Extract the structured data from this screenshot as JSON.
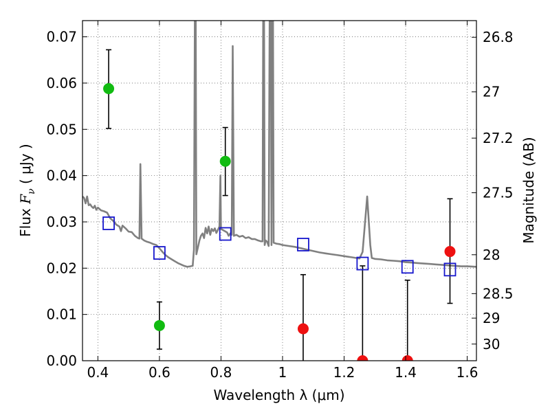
{
  "chart_data": {
    "type": "scatter",
    "xlabel": "Wavelength  λ (μm)",
    "ylabel": "Flux  F_ν  ( μJy )",
    "ylabel_parts": {
      "prefix": "Flux  ",
      "symbol": "F",
      "subscript": "ν",
      "suffix": "  ( μJy )"
    },
    "y2label": "Magnitude (AB)",
    "xlim": [
      0.35,
      1.63
    ],
    "ylim": [
      0.0,
      0.0735
    ],
    "grid": true,
    "x_ticks": [
      {
        "value": 0.4,
        "label": "0.4"
      },
      {
        "value": 0.6,
        "label": "0.6"
      },
      {
        "value": 0.8,
        "label": "0.8"
      },
      {
        "value": 1.0,
        "label": "1"
      },
      {
        "value": 1.2,
        "label": "1.2"
      },
      {
        "value": 1.4,
        "label": "1.4"
      },
      {
        "value": 1.6,
        "label": "1.6"
      }
    ],
    "y_ticks": [
      {
        "value": 0.0,
        "label": "0.00"
      },
      {
        "value": 0.01,
        "label": "0.01"
      },
      {
        "value": 0.02,
        "label": "0.02"
      },
      {
        "value": 0.03,
        "label": "0.03"
      },
      {
        "value": 0.04,
        "label": "0.04"
      },
      {
        "value": 0.05,
        "label": "0.05"
      },
      {
        "value": 0.06,
        "label": "0.06"
      },
      {
        "value": 0.07,
        "label": "0.07"
      }
    ],
    "y2_ticks": [
      {
        "flux": 0.0699,
        "label": "26.8"
      },
      {
        "flux": 0.0581,
        "label": "27"
      },
      {
        "flux": 0.0481,
        "label": "27.2"
      },
      {
        "flux": 0.0363,
        "label": "27.5"
      },
      {
        "flux": 0.0229,
        "label": "28"
      },
      {
        "flux": 0.0145,
        "label": "28.5"
      },
      {
        "flux": 0.0092,
        "label": "29"
      },
      {
        "flux": 0.0036,
        "label": "30"
      }
    ],
    "detections": [
      {
        "x": 0.435,
        "y": 0.0588,
        "err_low": 0.0502,
        "err_high": 0.0672
      },
      {
        "x": 0.6,
        "y": 0.0076,
        "err_low": 0.0025,
        "err_high": 0.0127
      },
      {
        "x": 0.814,
        "y": 0.0431,
        "err_low": 0.0357,
        "err_high": 0.0504
      }
    ],
    "non_detections": [
      {
        "x": 1.067,
        "y": 0.0069,
        "err_low": 0.0,
        "err_high": 0.0186
      },
      {
        "x": 1.26,
        "y": 0.0,
        "err_low": 0.0,
        "err_high": 0.0205
      },
      {
        "x": 1.406,
        "y": 0.0,
        "err_low": 0.0,
        "err_high": 0.0174
      },
      {
        "x": 1.544,
        "y": 0.0236,
        "err_low": 0.0124,
        "err_high": 0.035
      }
    ],
    "model_photometry": [
      {
        "x": 0.435,
        "y": 0.0297
      },
      {
        "x": 0.6,
        "y": 0.0233
      },
      {
        "x": 0.814,
        "y": 0.0274
      },
      {
        "x": 1.067,
        "y": 0.0251
      },
      {
        "x": 1.26,
        "y": 0.021
      },
      {
        "x": 1.406,
        "y": 0.0203
      },
      {
        "x": 1.544,
        "y": 0.0197
      }
    ],
    "model_spectrum": [
      [
        0.35,
        0.0355
      ],
      [
        0.355,
        0.0352
      ],
      [
        0.36,
        0.034
      ],
      [
        0.365,
        0.0355
      ],
      [
        0.37,
        0.0336
      ],
      [
        0.375,
        0.0338
      ],
      [
        0.38,
        0.0333
      ],
      [
        0.385,
        0.033
      ],
      [
        0.39,
        0.0335
      ],
      [
        0.395,
        0.0326
      ],
      [
        0.4,
        0.0331
      ],
      [
        0.41,
        0.0325
      ],
      [
        0.42,
        0.0323
      ],
      [
        0.43,
        0.032
      ],
      [
        0.44,
        0.0308
      ],
      [
        0.45,
        0.0302
      ],
      [
        0.46,
        0.0294
      ],
      [
        0.47,
        0.029
      ],
      [
        0.475,
        0.028
      ],
      [
        0.48,
        0.0292
      ],
      [
        0.49,
        0.0286
      ],
      [
        0.5,
        0.0279
      ],
      [
        0.51,
        0.0278
      ],
      [
        0.52,
        0.027
      ],
      [
        0.53,
        0.0265
      ],
      [
        0.535,
        0.0264
      ],
      [
        0.538,
        0.0425
      ],
      [
        0.542,
        0.0264
      ],
      [
        0.55,
        0.026
      ],
      [
        0.56,
        0.0257
      ],
      [
        0.57,
        0.0255
      ],
      [
        0.58,
        0.0252
      ],
      [
        0.59,
        0.025
      ],
      [
        0.6,
        0.0243
      ],
      [
        0.61,
        0.0235
      ],
      [
        0.62,
        0.0228
      ],
      [
        0.63,
        0.0223
      ],
      [
        0.64,
        0.0219
      ],
      [
        0.65,
        0.0215
      ],
      [
        0.66,
        0.0211
      ],
      [
        0.67,
        0.0208
      ],
      [
        0.68,
        0.0205
      ],
      [
        0.69,
        0.0203
      ],
      [
        0.7,
        0.0204
      ],
      [
        0.708,
        0.0205
      ],
      [
        0.712,
        0.024
      ],
      [
        0.715,
        0.0735
      ],
      [
        0.718,
        0.0735
      ],
      [
        0.72,
        0.023
      ],
      [
        0.725,
        0.0245
      ],
      [
        0.73,
        0.026
      ],
      [
        0.735,
        0.027
      ],
      [
        0.74,
        0.0275
      ],
      [
        0.745,
        0.0265
      ],
      [
        0.75,
        0.0287
      ],
      [
        0.755,
        0.0275
      ],
      [
        0.76,
        0.029
      ],
      [
        0.765,
        0.0272
      ],
      [
        0.77,
        0.0285
      ],
      [
        0.775,
        0.028
      ],
      [
        0.78,
        0.0286
      ],
      [
        0.785,
        0.0276
      ],
      [
        0.79,
        0.0283
      ],
      [
        0.795,
        0.029
      ],
      [
        0.798,
        0.04
      ],
      [
        0.8,
        0.0285
      ],
      [
        0.81,
        0.0281
      ],
      [
        0.82,
        0.0277
      ],
      [
        0.825,
        0.027
      ],
      [
        0.83,
        0.0275
      ],
      [
        0.835,
        0.0272
      ],
      [
        0.838,
        0.068
      ],
      [
        0.842,
        0.027
      ],
      [
        0.85,
        0.0272
      ],
      [
        0.86,
        0.0268
      ],
      [
        0.87,
        0.027
      ],
      [
        0.88,
        0.0265
      ],
      [
        0.89,
        0.0267
      ],
      [
        0.9,
        0.0263
      ],
      [
        0.91,
        0.0263
      ],
      [
        0.92,
        0.026
      ],
      [
        0.93,
        0.0258
      ],
      [
        0.935,
        0.0258
      ],
      [
        0.937,
        0.0735
      ],
      [
        0.94,
        0.0735
      ],
      [
        0.942,
        0.025
      ],
      [
        0.945,
        0.026
      ],
      [
        0.95,
        0.0257
      ],
      [
        0.955,
        0.0248
      ],
      [
        0.958,
        0.0735
      ],
      [
        0.962,
        0.0735
      ],
      [
        0.964,
        0.025
      ],
      [
        0.966,
        0.0735
      ],
      [
        0.969,
        0.0735
      ],
      [
        0.971,
        0.0255
      ],
      [
        0.98,
        0.0253
      ],
      [
        0.99,
        0.0252
      ],
      [
        1.0,
        0.025
      ],
      [
        1.02,
        0.0248
      ],
      [
        1.04,
        0.0246
      ],
      [
        1.06,
        0.0243
      ],
      [
        1.08,
        0.024
      ],
      [
        1.1,
        0.0237
      ],
      [
        1.12,
        0.0234
      ],
      [
        1.14,
        0.0232
      ],
      [
        1.16,
        0.023
      ],
      [
        1.18,
        0.0228
      ],
      [
        1.2,
        0.0226
      ],
      [
        1.22,
        0.0224
      ],
      [
        1.24,
        0.0222
      ],
      [
        1.25,
        0.0221
      ],
      [
        1.26,
        0.0235
      ],
      [
        1.275,
        0.0355
      ],
      [
        1.285,
        0.025
      ],
      [
        1.29,
        0.0222
      ],
      [
        1.3,
        0.022
      ],
      [
        1.32,
        0.0219
      ],
      [
        1.34,
        0.0217
      ],
      [
        1.36,
        0.0216
      ],
      [
        1.38,
        0.0215
      ],
      [
        1.4,
        0.0213
      ],
      [
        1.42,
        0.0212
      ],
      [
        1.44,
        0.0211
      ],
      [
        1.46,
        0.021
      ],
      [
        1.48,
        0.0209
      ],
      [
        1.5,
        0.0208
      ],
      [
        1.52,
        0.0207
      ],
      [
        1.54,
        0.0206
      ],
      [
        1.56,
        0.0205
      ],
      [
        1.58,
        0.0204
      ],
      [
        1.6,
        0.0204
      ],
      [
        1.63,
        0.0203
      ]
    ],
    "colors": {
      "detection": "#11bb11",
      "non_detection": "#ee1111",
      "model_box": "#1515cc",
      "spectrum": "#808080",
      "errorbar": "#000000",
      "grid": "#666666"
    }
  }
}
